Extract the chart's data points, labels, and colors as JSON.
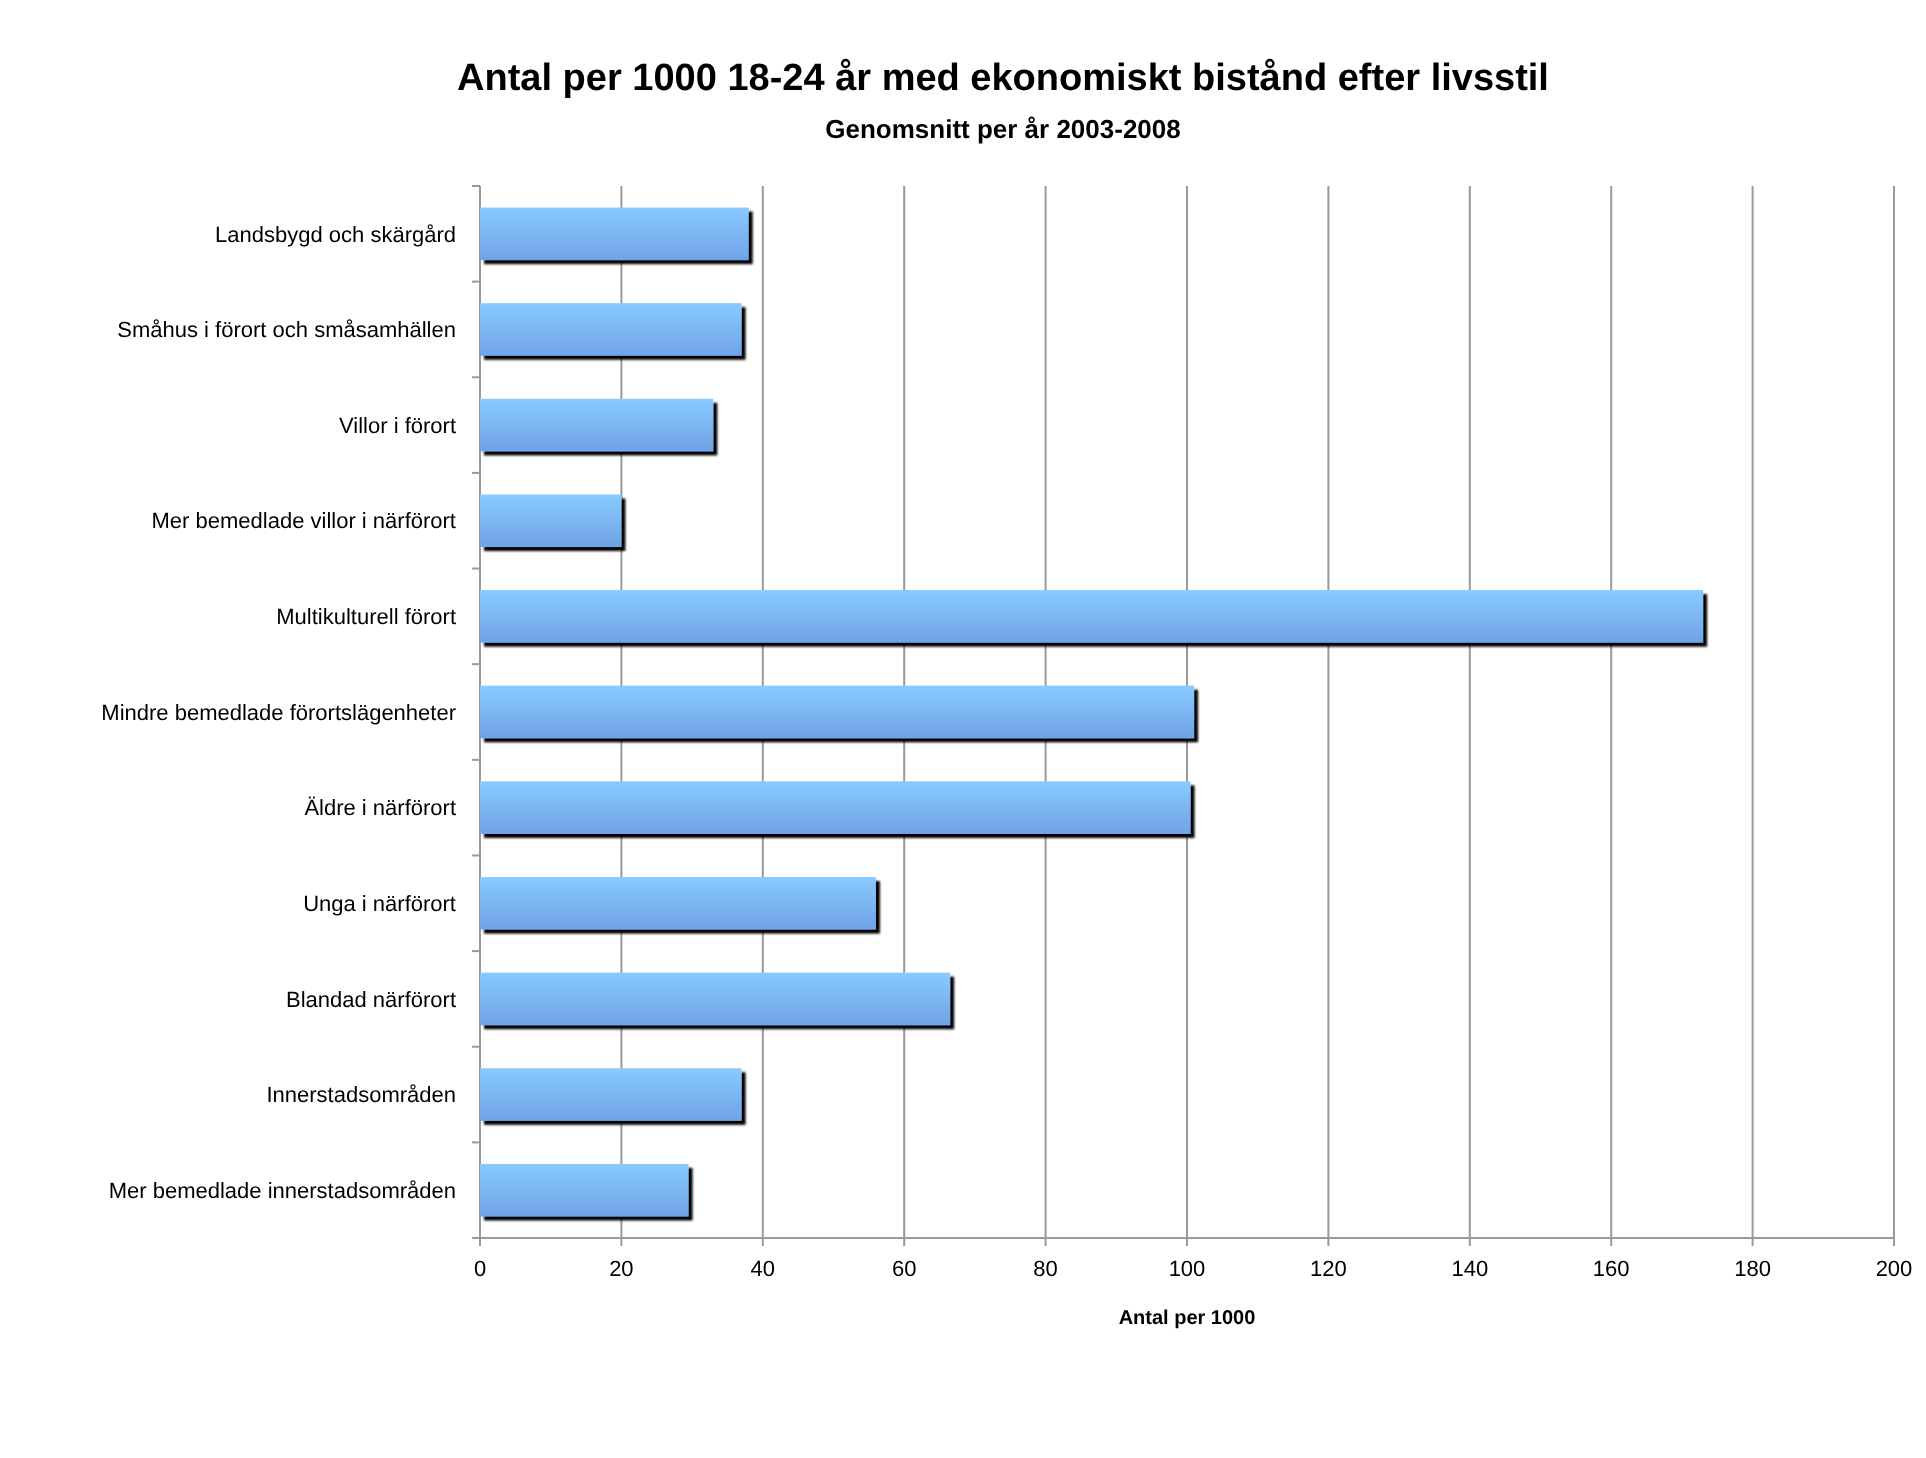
{
  "chart_data": {
    "type": "bar",
    "orientation": "horizontal",
    "title": "Antal per 1000 18-24 år med ekonomiskt bistånd efter livsstil",
    "subtitle": "Genomsnitt per år 2003-2008",
    "xlabel": "Antal per 1000",
    "categories": [
      "Landsbygd och skärgård",
      "Småhus i förort och småsamhällen",
      "Villor i förort",
      "Mer bemedlade villor i närförort",
      "Multikulturell förort",
      "Mindre bemedlade förortslägenheter",
      "Äldre i närförort",
      "Unga i närförort",
      "Blandad närförort",
      "Innerstadsområden",
      "Mer bemedlade innerstadsområden"
    ],
    "values": [
      38,
      37,
      33,
      20,
      173,
      101,
      100.5,
      56,
      66.5,
      37,
      29.5
    ],
    "color": "#6fa3e6",
    "xlim": [
      0,
      200
    ],
    "xticks": [
      0,
      20,
      40,
      60,
      80,
      100,
      120,
      140,
      160,
      180,
      200
    ],
    "grid": "x"
  }
}
